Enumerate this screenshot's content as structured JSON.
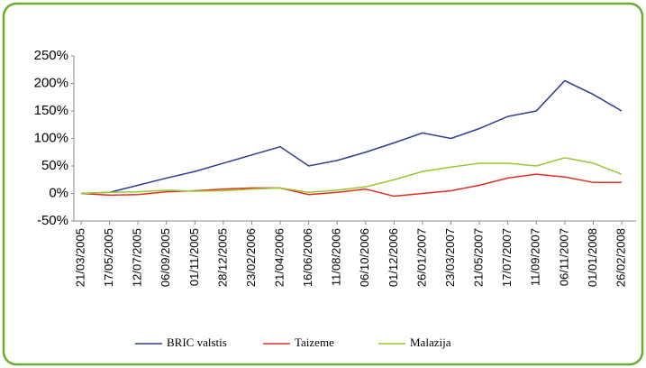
{
  "chart_data": {
    "type": "line",
    "categories": [
      "21/03/2005",
      "17/05/2005",
      "12/07/2005",
      "06/09/2005",
      "01/11/2005",
      "28/12/2005",
      "23/02/2006",
      "21/04/2006",
      "16/06/2006",
      "11/08/2006",
      "06/10/2006",
      "01/12/2006",
      "26/01/2007",
      "23/03/2007",
      "21/05/2007",
      "17/07/2007",
      "11/09/2007",
      "06/11/2007",
      "01/01/2008",
      "26/02/2008"
    ],
    "series": [
      {
        "name": "BRIC valstis",
        "color": "#2e3d91",
        "values": [
          0,
          2,
          15,
          28,
          40,
          55,
          70,
          85,
          50,
          60,
          75,
          92,
          110,
          100,
          118,
          140,
          150,
          205,
          180,
          150
        ]
      },
      {
        "name": "Taizeme",
        "color": "#e03020",
        "values": [
          0,
          -3,
          -2,
          3,
          5,
          8,
          10,
          10,
          -2,
          2,
          8,
          -5,
          0,
          5,
          15,
          28,
          35,
          30,
          20,
          20
        ]
      },
      {
        "name": "Malazija",
        "color": "#9bc531",
        "values": [
          0,
          2,
          3,
          6,
          4,
          5,
          8,
          10,
          2,
          6,
          12,
          25,
          40,
          48,
          55,
          55,
          50,
          65,
          55,
          35
        ]
      }
    ],
    "ylim": [
      -50,
      250
    ],
    "yticks": [
      {
        "value": -50,
        "label": "-50%"
      },
      {
        "value": 0,
        "label": "0%"
      },
      {
        "value": 50,
        "label": "50%"
      },
      {
        "value": 100,
        "label": "100%"
      },
      {
        "value": 150,
        "label": "150%"
      },
      {
        "value": 200,
        "label": "200%"
      },
      {
        "value": 250,
        "label": "250%"
      }
    ],
    "grid": false
  }
}
